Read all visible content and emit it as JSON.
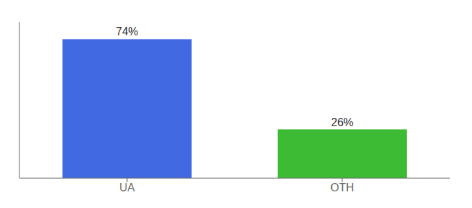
{
  "chart_data": {
    "type": "bar",
    "categories": [
      "UA",
      "OTH"
    ],
    "values": [
      74,
      26
    ],
    "value_labels": [
      "74%",
      "26%"
    ],
    "data_labels": true,
    "colors": [
      "#4169e1",
      "#3dbb35"
    ],
    "ylim": [
      0,
      83
    ],
    "tick_labels": "x"
  }
}
